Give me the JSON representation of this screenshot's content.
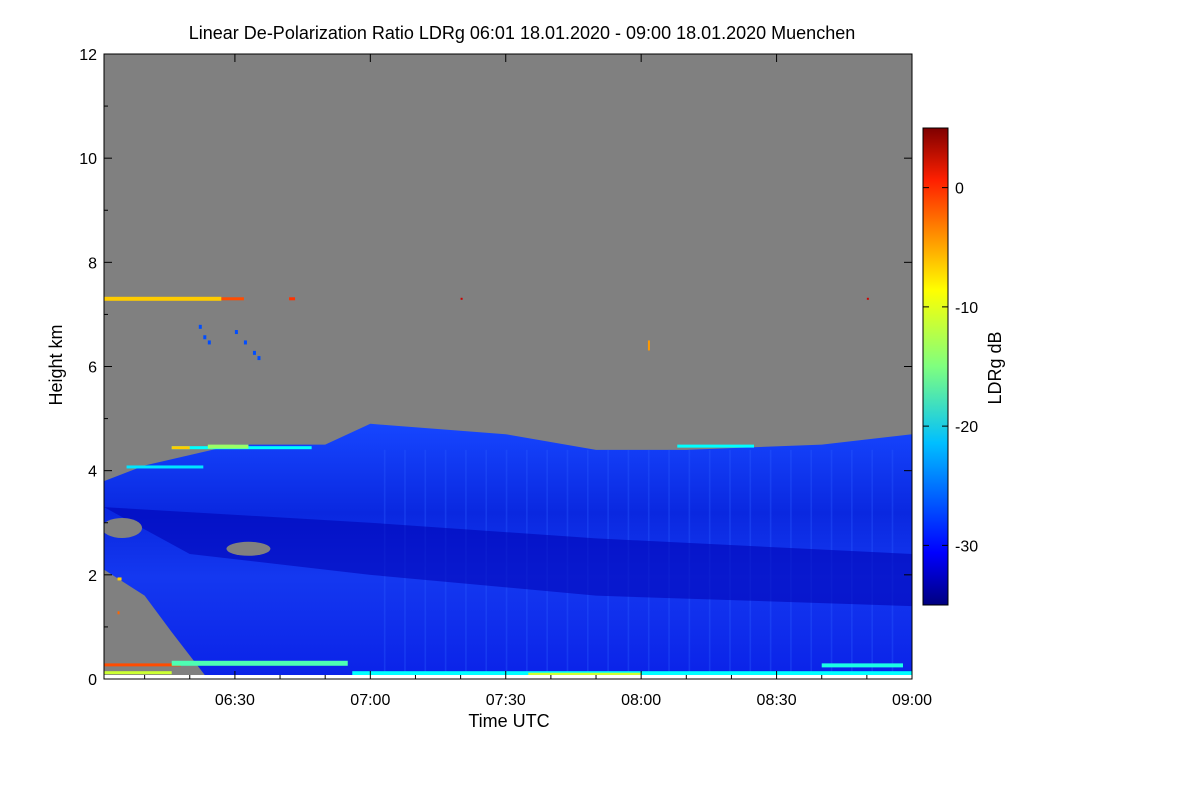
{
  "chart_data": {
    "type": "heatmap",
    "title": "Linear De-Polarization Ratio LDRg   06:01 18.01.2020 - 09:00 18.01.2020 Muenchen",
    "xlabel": "Time UTC",
    "ylabel": "Height km",
    "x_range_minutes_utc": [
      361,
      540
    ],
    "y_range_km": [
      0,
      12
    ],
    "x_ticks": [
      {
        "label": "06:30",
        "value": 390
      },
      {
        "label": "07:00",
        "value": 420
      },
      {
        "label": "07:30",
        "value": 450
      },
      {
        "label": "08:00",
        "value": 480
      },
      {
        "label": "08:30",
        "value": 510
      },
      {
        "label": "09:00",
        "value": 540
      }
    ],
    "y_ticks": [
      0,
      2,
      4,
      6,
      8,
      10,
      12
    ],
    "colorbar": {
      "label": "LDRg dB",
      "range": [
        -35,
        5
      ],
      "ticks": [
        0,
        -10,
        -20,
        -30
      ],
      "colormap": "jet"
    },
    "no_data_color": "#808080",
    "features": {
      "cloud_top_km": [
        {
          "t": 361,
          "h": 3.8
        },
        {
          "t": 370,
          "h": 4.1
        },
        {
          "t": 390,
          "h": 4.5
        },
        {
          "t": 410,
          "h": 4.5
        },
        {
          "t": 420,
          "h": 4.9
        },
        {
          "t": 450,
          "h": 4.7
        },
        {
          "t": 470,
          "h": 4.4
        },
        {
          "t": 490,
          "h": 4.4
        },
        {
          "t": 520,
          "h": 4.5
        },
        {
          "t": 540,
          "h": 4.7
        }
      ],
      "cirrus_layer_km": 7.3,
      "cirrus_ldr_db": -8,
      "cloud_ldr_db": -30,
      "surface_layer_ldr_db": -20
    }
  }
}
